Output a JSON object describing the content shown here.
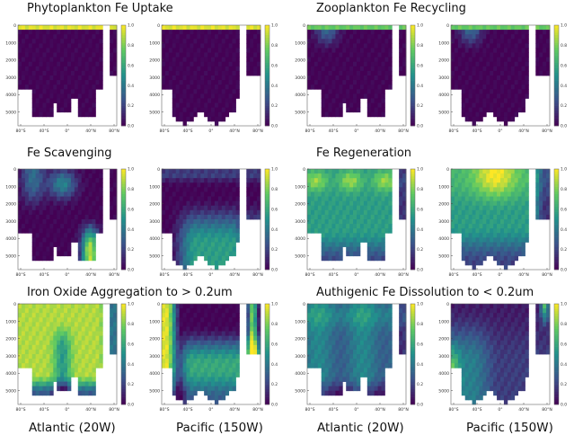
{
  "titles": {
    "r0c0": "Phytoplankton Fe Uptake",
    "r0c1": "Zooplankton Fe Recycling",
    "r1c0": "Fe Scavenging",
    "r1c1": "Fe Regeneration",
    "r2c0": "Iron Oxide Aggregation to > 0.2um",
    "r2c1": "Authigenic Fe Dissolution to < 0.2um"
  },
  "bottom_labels": [
    "Atlantic (20W)",
    "Pacific (150W)",
    "Atlantic (20W)",
    "Pacific (150W)"
  ],
  "colors": {
    "scale": [
      "#440154",
      "#3b528b",
      "#21918c",
      "#5ec962",
      "#fde725"
    ],
    "land": "#ffffff",
    "frame": "#666666"
  },
  "chart_data": {
    "type": "heatmap",
    "colorbar": {
      "range": [
        0.0,
        1.0
      ],
      "ticks": [
        "0.0",
        "0.2",
        "0.4",
        "0.6",
        "0.8",
        "1.0"
      ]
    },
    "x_ticks": [
      "80°S",
      "40°S",
      "0°",
      "40°N",
      "80°N"
    ],
    "y_ticks": [
      "0",
      "1000",
      "2000",
      "3000",
      "4000",
      "5000"
    ],
    "ylim": [
      5800,
      0
    ],
    "panels": [
      {
        "row": 0,
        "col": 0,
        "section": "Atlantic",
        "pattern": "surface"
      },
      {
        "row": 0,
        "col": 1,
        "section": "Pacific",
        "pattern": "surface"
      },
      {
        "row": 0,
        "col": 2,
        "section": "Atlantic",
        "pattern": "zoo"
      },
      {
        "row": 0,
        "col": 3,
        "section": "Pacific",
        "pattern": "zoo"
      },
      {
        "row": 1,
        "col": 0,
        "section": "Atlantic",
        "pattern": "scav_atl"
      },
      {
        "row": 1,
        "col": 1,
        "section": "Pacific",
        "pattern": "scav_pac"
      },
      {
        "row": 1,
        "col": 2,
        "section": "Atlantic",
        "pattern": "regen_atl"
      },
      {
        "row": 1,
        "col": 3,
        "section": "Pacific",
        "pattern": "regen_pac"
      },
      {
        "row": 2,
        "col": 0,
        "section": "Atlantic",
        "pattern": "agg_atl"
      },
      {
        "row": 2,
        "col": 1,
        "section": "Pacific",
        "pattern": "agg_pac"
      },
      {
        "row": 2,
        "col": 2,
        "section": "Atlantic",
        "pattern": "diss_atl"
      },
      {
        "row": 2,
        "col": 3,
        "section": "Pacific",
        "pattern": "diss_pac"
      }
    ]
  }
}
